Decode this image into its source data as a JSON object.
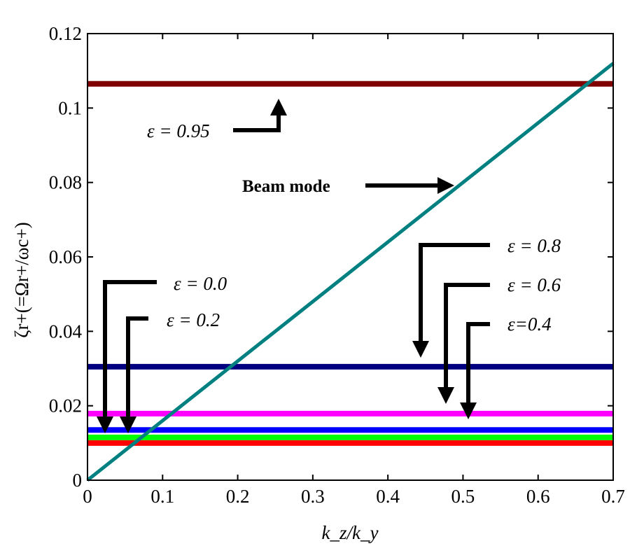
{
  "chart_data": {
    "type": "line",
    "title": "",
    "xlabel": "k_z/k_y",
    "ylabel": "ζr+(=Ωr+/ωc+)",
    "xlim": [
      0,
      0.7
    ],
    "ylim": [
      0,
      0.12
    ],
    "xticks": [
      "0",
      "0.1",
      "0.2",
      "0.3",
      "0.4",
      "0.5",
      "0.6",
      "0.7"
    ],
    "yticks": [
      "0",
      "0.02",
      "0.04",
      "0.06",
      "0.08",
      "0.1",
      "0.12"
    ],
    "grid": false,
    "series": [
      {
        "name": "ε = 0.0",
        "color": "#ff0000",
        "x": [
          0,
          0.7
        ],
        "y": [
          0.01,
          0.01
        ]
      },
      {
        "name": "ε = 0.2",
        "color": "#00ff00",
        "x": [
          0,
          0.7
        ],
        "y": [
          0.0115,
          0.0115
        ]
      },
      {
        "name": "ε=0.4",
        "color": "#0000ff",
        "x": [
          0,
          0.7
        ],
        "y": [
          0.0135,
          0.0135
        ]
      },
      {
        "name": "ε = 0.6",
        "color": "#ff00ff",
        "x": [
          0,
          0.7
        ],
        "y": [
          0.0179,
          0.0179
        ]
      },
      {
        "name": "ε = 0.8",
        "color": "#000080",
        "x": [
          0,
          0.7
        ],
        "y": [
          0.0305,
          0.0305
        ]
      },
      {
        "name": "ε = 0.95",
        "color": "#800000",
        "x": [
          0,
          0.7
        ],
        "y": [
          0.1065,
          0.1065
        ]
      },
      {
        "name": "Beam mode",
        "color": "#008080",
        "x": [
          0,
          0.7
        ],
        "y": [
          0,
          0.112
        ]
      }
    ],
    "annotations": {
      "eps095": "ε = 0.95",
      "beam": "Beam mode",
      "eps08": "ε = 0.8",
      "eps06": "ε = 0.6",
      "eps04": "ε=0.4",
      "eps00": "ε = 0.0",
      "eps02": "ε = 0.2"
    }
  }
}
